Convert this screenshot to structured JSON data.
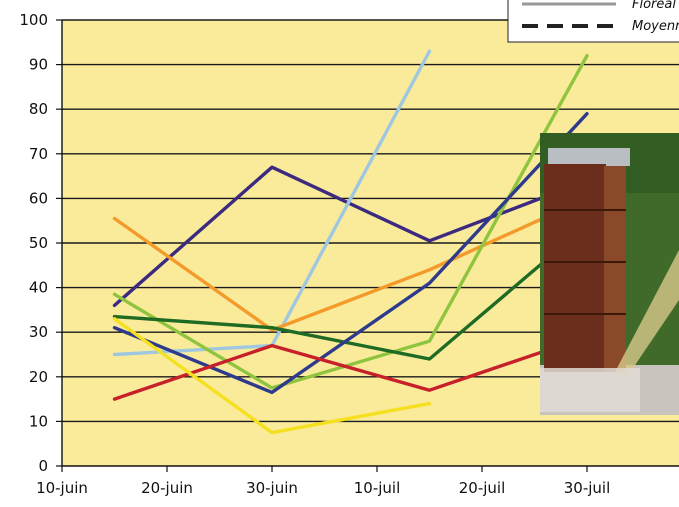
{
  "colors": {
    "plot_background": "#faeb9b",
    "gridline": "#1a1a1a",
    "axis": "#111111"
  },
  "legend": {
    "entries": [
      "Floréal",
      "Moyenne"
    ]
  },
  "chart_data": {
    "type": "line",
    "categories": [
      "10-juin",
      "20-juin",
      "30-juin",
      "10-juil",
      "20-juil",
      "30-juil"
    ],
    "ylim": [
      0,
      100
    ],
    "yticks": [
      0,
      10,
      20,
      30,
      40,
      50,
      60,
      70,
      80,
      90,
      100
    ],
    "grid": true,
    "legend_position": "top-right",
    "series": [
      {
        "color": "#3b2a80",
        "x": [
          "15-juin",
          "30-juin",
          "15-juil",
          "30-juil"
        ],
        "values": [
          36,
          67,
          50.5,
          64
        ]
      },
      {
        "color": "#9fc8e0",
        "x": [
          "15-juin",
          "30-juin",
          "15-juil"
        ],
        "values": [
          25,
          27,
          93
        ]
      },
      {
        "color": "#f39a2b",
        "x": [
          "15-juin",
          "30-juin",
          "15-juil",
          "30-juil"
        ],
        "values": [
          55.5,
          30.5,
          44,
          60
        ]
      },
      {
        "color": "#8fc43f",
        "x": [
          "15-juin",
          "30-juin",
          "15-juil",
          "30-juil"
        ],
        "values": [
          38.5,
          17.5,
          28,
          92
        ]
      },
      {
        "color": "#1f6b24",
        "x": [
          "15-juin",
          "30-juin",
          "15-juil",
          "30-juil"
        ],
        "values": [
          33.5,
          31,
          24,
          54
        ]
      },
      {
        "color": "#2e3a8c",
        "x": [
          "15-juin",
          "30-juin",
          "15-juil",
          "30-juil"
        ],
        "values": [
          31,
          16.5,
          41,
          79
        ]
      },
      {
        "color": "#c8202a",
        "x": [
          "15-juin",
          "30-juin",
          "15-juil",
          "30-juil"
        ],
        "values": [
          15,
          27,
          17,
          29
        ]
      },
      {
        "color": "#f5e020",
        "x": [
          "15-juin",
          "30-juin",
          "15-juil"
        ],
        "values": [
          33,
          7.5,
          14
        ]
      }
    ]
  },
  "photo": {
    "subject": "beehive-photo"
  }
}
